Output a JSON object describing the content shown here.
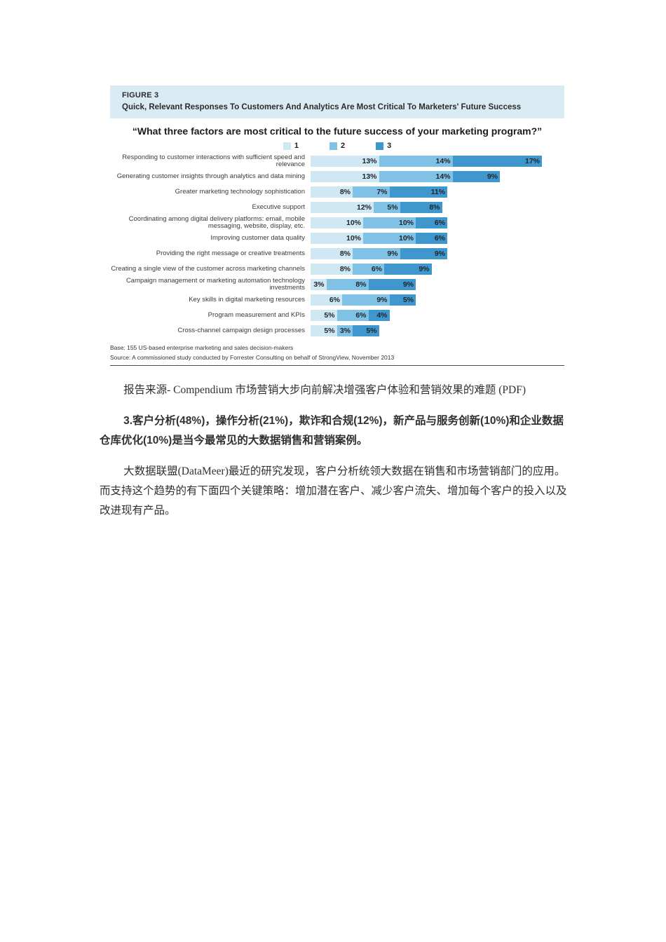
{
  "figure": {
    "figure_label": "FIGURE 3",
    "title": "Quick, Relevant Responses To Customers And Analytics Are Most Critical To Marketers' Future Success",
    "question": "“What three factors are most critical to the future success of your marketing program?”",
    "base_note": "Base: 155 US-based enterprise marketing and sales decision-makers",
    "source_note": "Source: A commissioned study conducted by Forrester Consulting on behalf of StrongView, November 2013"
  },
  "chart_data": {
    "type": "bar",
    "orientation": "horizontal",
    "stacked": true,
    "unit": "percent",
    "title": "Quick, Relevant Responses To Customers And Analytics Are Most Critical To Marketers' Future Success",
    "question": "What three factors are most critical to the future success of your marketing program?",
    "legend_position": "top-center",
    "value_labels": "inside-right",
    "xlim": [
      0,
      45
    ],
    "categories": [
      "Responding to customer interactions with sufficient speed and relevance",
      "Generating customer insights through analytics and data mining",
      "Greater marketing technology sophistication",
      "Executive support",
      "Coordinating among digital delivery platforms: email, mobile messaging, website, display, etc.",
      "Improving customer data quality",
      "Providing the right message or creative treatments",
      "Creating a single view of the customer across marketing channels",
      "Campaign management or marketing automation technology investments",
      "Key skills in digital marketing resources",
      "Program measurement and KPIs",
      "Cross-channel campaign design processes"
    ],
    "series": [
      {
        "name": "1",
        "color": "#cfe8f4",
        "values": [
          13,
          13,
          8,
          12,
          10,
          10,
          8,
          8,
          3,
          6,
          5,
          5
        ]
      },
      {
        "name": "2",
        "color": "#7fc2e5",
        "values": [
          14,
          14,
          7,
          5,
          10,
          10,
          9,
          6,
          8,
          9,
          6,
          3
        ]
      },
      {
        "name": "3",
        "color": "#3f97cd",
        "values": [
          17,
          9,
          11,
          8,
          6,
          6,
          9,
          9,
          9,
          5,
          4,
          5
        ]
      }
    ]
  },
  "body": {
    "p1": "报告来源- Compendium 市场营销大步向前解决增强客户体验和营销效果的难题 (PDF)",
    "p2": "3.客户分析(48%)，操作分析(21%)，欺诈和合规(12%)，新产品与服务创新(10%)和企业数据仓库优化(10%)是当今最常见的大数据销售和营销案例。",
    "p3": "大数据联盟(DataMeer)最近的研究发现，客户分析统领大数据在销售和市场营销部门的应用。而支持这个趋势的有下面四个关键策略：增加潜在客户、减少客户流失、增加每个客户的投入以及改进现有产品。"
  }
}
